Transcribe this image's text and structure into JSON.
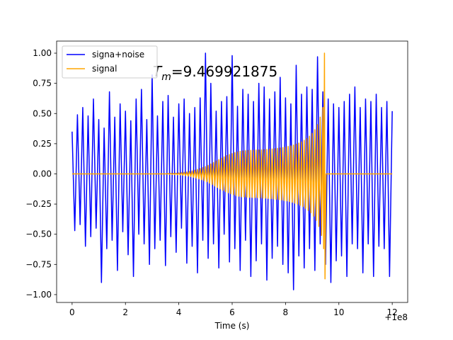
{
  "chart_data": {
    "type": "line",
    "x_label": "Time (s)",
    "x_offset_label": "+1e8",
    "annotation": {
      "symbol": "T",
      "subscript": "m",
      "text": "=9.469921875"
    },
    "xlim": [
      -0.58,
      12.58
    ],
    "ylim": [
      -1.065,
      1.1
    ],
    "xticks": [
      0,
      2,
      4,
      6,
      8,
      10,
      12
    ],
    "yticks": [
      {
        "value": -1,
        "label": "−1.00"
      },
      {
        "value": -0.75,
        "label": "−0.75"
      },
      {
        "value": -0.5,
        "label": "−0.50"
      },
      {
        "value": -0.25,
        "label": "−0.25"
      },
      {
        "value": 0,
        "label": "0.00"
      },
      {
        "value": 0.25,
        "label": "0.25"
      },
      {
        "value": 0.5,
        "label": "0.50"
      },
      {
        "value": 0.75,
        "label": "0.75"
      },
      {
        "value": 1,
        "label": "1.00"
      }
    ],
    "legend": "upper left",
    "series": [
      {
        "name": "signa+noise",
        "color": "#0000ff",
        "x": [
          0,
          0.1,
          0.2,
          0.3,
          0.4,
          0.5,
          0.6,
          0.7,
          0.8,
          0.9,
          1,
          1.1,
          1.2,
          1.3,
          1.4,
          1.5,
          1.6,
          1.7,
          1.8,
          1.9,
          2,
          2.1,
          2.2,
          2.3,
          2.4,
          2.5,
          2.6,
          2.7,
          2.8,
          2.9,
          3,
          3.1,
          3.2,
          3.3,
          3.4,
          3.5,
          3.6,
          3.7,
          3.8,
          3.9,
          4,
          4.1,
          4.2,
          4.3,
          4.4,
          4.5,
          4.6,
          4.7,
          4.8,
          4.9,
          5,
          5.1,
          5.2,
          5.3,
          5.4,
          5.5,
          5.6,
          5.7,
          5.8,
          5.9,
          6,
          6.1,
          6.2,
          6.3,
          6.4,
          6.5,
          6.6,
          6.7,
          6.8,
          6.9,
          7,
          7.1,
          7.2,
          7.3,
          7.4,
          7.5,
          7.6,
          7.7,
          7.8,
          7.9,
          8,
          8.1,
          8.2,
          8.3,
          8.4,
          8.5,
          8.6,
          8.7,
          8.8,
          8.9,
          9,
          9.1,
          9.2,
          9.3,
          9.4,
          9.5,
          9.6,
          9.7,
          9.8,
          9.9,
          10,
          10.1,
          10.2,
          10.3,
          10.4,
          10.5,
          10.6,
          10.7,
          10.8,
          10.9,
          11,
          11.1,
          11.2,
          11.3,
          11.4,
          11.5,
          11.6,
          11.7,
          11.8,
          11.9,
          12
        ],
        "values": [
          0.35,
          -0.47,
          0.49,
          -0.42,
          0.55,
          -0.6,
          0.48,
          -0.52,
          0.62,
          -0.45,
          0.45,
          -0.9,
          0.38,
          -0.62,
          0.68,
          -0.55,
          0.47,
          -0.8,
          0.58,
          -0.48,
          0.52,
          -0.67,
          0.44,
          -0.85,
          0.62,
          -0.5,
          0.7,
          -0.58,
          0.45,
          -0.75,
          0.82,
          -0.62,
          0.48,
          -0.55,
          0.6,
          -0.76,
          0.65,
          -0.52,
          0.47,
          -0.65,
          0.58,
          -0.45,
          0.62,
          -0.74,
          0.5,
          -0.6,
          0.55,
          -0.82,
          0.63,
          -0.55,
          1.0,
          -0.7,
          0.75,
          -0.58,
          0.52,
          -0.78,
          0.6,
          -0.5,
          0.64,
          -0.73,
          0.98,
          -0.62,
          0.56,
          -0.8,
          0.7,
          -0.55,
          0.66,
          -0.85,
          0.6,
          -0.72,
          0.75,
          -0.58,
          0.72,
          -0.88,
          0.62,
          -0.7,
          0.68,
          -0.6,
          0.8,
          -0.75,
          0.63,
          -0.82,
          0.58,
          -0.96,
          0.9,
          -0.68,
          0.66,
          -0.78,
          0.72,
          -0.62,
          0.7,
          -0.8,
          0.97,
          -0.58,
          0.68,
          -0.75,
          0.62,
          -0.9,
          0.58,
          -0.72,
          0.55,
          -0.68,
          0.6,
          -0.85,
          0.66,
          -0.58,
          0.72,
          -0.62,
          0.55,
          -0.82,
          0.62,
          -0.58,
          0.6,
          -0.85,
          0.66,
          -0.6,
          0.55,
          -0.62,
          0.6,
          -0.85,
          0.52
        ]
      },
      {
        "name": "signal",
        "color": "#ffa500",
        "x": [
          0,
          3.55,
          3.6,
          3.65,
          3.7,
          3.75,
          3.8,
          3.85,
          3.9,
          3.95,
          4,
          4.05,
          4.1,
          4.15,
          4.2,
          4.25,
          4.3,
          4.35,
          4.4,
          4.45,
          4.5,
          4.55,
          4.6,
          4.65,
          4.7,
          4.75,
          4.8,
          4.85,
          4.9,
          4.95,
          5,
          5.05,
          5.1,
          5.15,
          5.2,
          5.25,
          5.3,
          5.35,
          5.4,
          5.45,
          5.5,
          5.55,
          5.6,
          5.65,
          5.7,
          5.75,
          5.8,
          5.85,
          5.9,
          5.95,
          6,
          6.05,
          6.1,
          6.15,
          6.2,
          6.25,
          6.3,
          6.35,
          6.4,
          6.45,
          6.5,
          6.55,
          6.6,
          6.65,
          6.7,
          6.75,
          6.8,
          6.85,
          6.9,
          6.95,
          7,
          7.05,
          7.1,
          7.15,
          7.2,
          7.25,
          7.3,
          7.35,
          7.4,
          7.45,
          7.5,
          7.55,
          7.6,
          7.65,
          7.7,
          7.75,
          7.8,
          7.85,
          7.9,
          7.95,
          8,
          8.05,
          8.1,
          8.15,
          8.2,
          8.25,
          8.3,
          8.35,
          8.4,
          8.45,
          8.5,
          8.55,
          8.6,
          8.65,
          8.7,
          8.75,
          8.8,
          8.85,
          8.9,
          8.95,
          9,
          9.05,
          9.1,
          9.15,
          9.2,
          9.25,
          9.3,
          9.35,
          9.4,
          9.43,
          9.46,
          9.48,
          9.52,
          12
        ],
        "values": [
          0,
          0,
          0.003,
          -0.003,
          0.004,
          -0.004,
          0.005,
          -0.005,
          0.006,
          -0.007,
          0.008,
          -0.009,
          0.01,
          -0.011,
          0.013,
          -0.014,
          0.016,
          -0.018,
          0.02,
          -0.022,
          0.025,
          -0.028,
          0.031,
          -0.034,
          0.037,
          -0.041,
          0.044,
          -0.048,
          0.052,
          -0.056,
          0.06,
          -0.065,
          0.07,
          -0.076,
          0.082,
          -0.088,
          0.094,
          -0.1,
          0.106,
          -0.112,
          0.118,
          -0.124,
          0.13,
          -0.136,
          0.141,
          -0.146,
          0.151,
          -0.156,
          0.16,
          -0.164,
          0.168,
          -0.172,
          0.176,
          -0.179,
          0.182,
          -0.185,
          0.187,
          -0.189,
          0.19,
          -0.191,
          0.192,
          -0.193,
          0.194,
          -0.194,
          0.195,
          -0.195,
          0.196,
          -0.196,
          0.197,
          -0.197,
          0.198,
          -0.198,
          0.199,
          -0.2,
          0.2,
          -0.201,
          0.202,
          -0.203,
          0.204,
          -0.205,
          0.206,
          -0.207,
          0.208,
          -0.21,
          0.211,
          -0.213,
          0.214,
          -0.216,
          0.218,
          -0.22,
          0.222,
          -0.224,
          0.227,
          -0.229,
          0.232,
          -0.235,
          0.238,
          -0.242,
          0.246,
          -0.25,
          0.255,
          -0.26,
          0.265,
          -0.271,
          0.278,
          -0.285,
          0.293,
          -0.302,
          0.312,
          -0.323,
          0.336,
          -0.35,
          0.366,
          -0.385,
          0.408,
          -0.436,
          0.47,
          -0.51,
          0.55,
          -0.62,
          1.0,
          -0.87,
          0,
          0
        ]
      }
    ]
  }
}
